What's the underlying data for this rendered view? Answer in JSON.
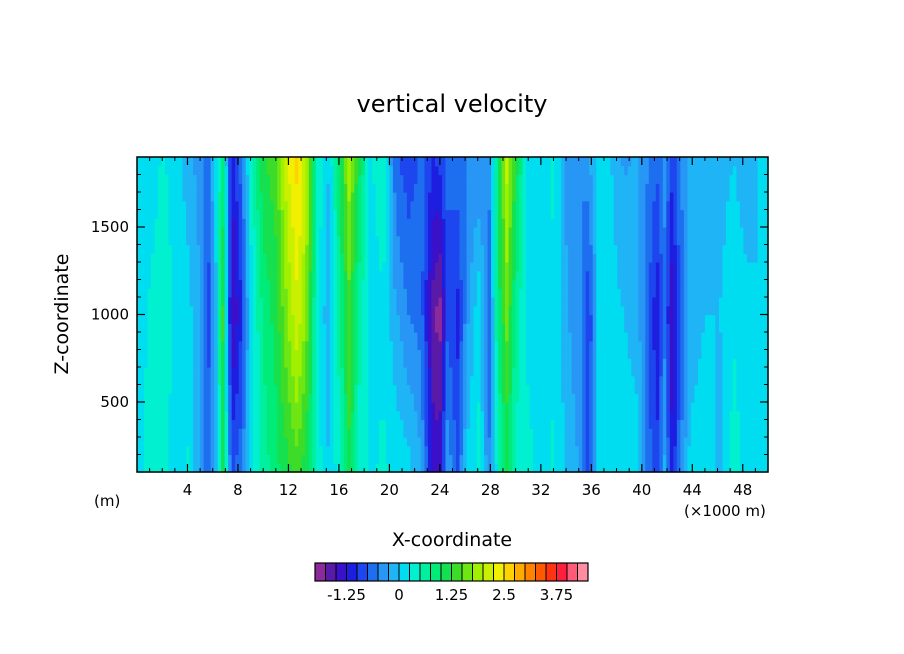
{
  "chart_data": {
    "type": "heatmap",
    "title": "vertical velocity",
    "xlabel": "X-coordinate",
    "ylabel": "Z-coordinate",
    "x_unit_label": "(m)",
    "x_scale_label": "(×1000 m)",
    "xlim": [
      0,
      50
    ],
    "ylim": [
      100,
      1900
    ],
    "x_ticks": [
      "4",
      "8",
      "12",
      "16",
      "20",
      "24",
      "28",
      "32",
      "36",
      "40",
      "44",
      "48"
    ],
    "y_ticks": [
      "500",
      "1000",
      "1500"
    ],
    "colorbar": {
      "levels": [
        -1.75,
        -1.5,
        -1.25,
        -1.0,
        -0.75,
        -0.5,
        -0.25,
        0,
        0.25,
        0.5,
        0.75,
        1.0,
        1.25,
        1.5,
        1.75,
        2.0,
        2.25,
        2.5,
        2.75,
        3.0,
        3.25,
        3.5,
        3.75,
        4.0
      ],
      "tick_labels": [
        "-1.25",
        "0",
        "1.25",
        "2.5",
        "3.75"
      ],
      "colors": [
        "#8c2a9c",
        "#5a1aa8",
        "#3a10c8",
        "#1e1ee0",
        "#1e46ee",
        "#1e6ef0",
        "#2896f5",
        "#1eb4f5",
        "#00dcf0",
        "#00f0d0",
        "#00f0a0",
        "#00ec78",
        "#14e050",
        "#3cdc28",
        "#6ee614",
        "#a0f000",
        "#c8f000",
        "#f0f000",
        "#ffd200",
        "#ffaa00",
        "#ff8200",
        "#ff5a00",
        "#ff3214",
        "#ff1e3c",
        "#ff5a78",
        "#ff8ca0"
      ]
    },
    "columns": [
      {
        "x": 0.0,
        "top": 0.0,
        "mid": 0.05,
        "bot": 0.1
      },
      {
        "x": 1.0,
        "top": 0.0,
        "mid": 0.3,
        "bot": 0.4
      },
      {
        "x": 2.0,
        "top": 0.3,
        "mid": 0.5,
        "bot": 0.35
      },
      {
        "x": 3.0,
        "top": 0.1,
        "mid": 0.2,
        "bot": 0.1
      },
      {
        "x": 4.0,
        "top": -0.1,
        "mid": 0.1,
        "bot": 0.3
      },
      {
        "x": 5.0,
        "top": -0.4,
        "mid": -0.2,
        "bot": -0.3
      },
      {
        "x": 5.6,
        "top": -0.6,
        "mid": -1.0,
        "bot": -0.6
      },
      {
        "x": 6.3,
        "top": 0.2,
        "mid": 0.0,
        "bot": -0.2
      },
      {
        "x": 6.8,
        "top": 0.8,
        "mid": 1.3,
        "bot": 1.1
      },
      {
        "x": 7.5,
        "top": -1.2,
        "mid": -1.6,
        "bot": -0.8
      },
      {
        "x": 8.3,
        "top": -0.6,
        "mid": -1.0,
        "bot": -0.6
      },
      {
        "x": 9.0,
        "top": 0.4,
        "mid": 0.1,
        "bot": 0.2
      },
      {
        "x": 10.0,
        "top": 1.2,
        "mid": 0.8,
        "bot": 0.6
      },
      {
        "x": 11.0,
        "top": 1.4,
        "mid": 1.1,
        "bot": 0.9
      },
      {
        "x": 12.0,
        "top": 2.3,
        "mid": 1.8,
        "bot": 1.2
      },
      {
        "x": 12.7,
        "top": 2.6,
        "mid": 2.2,
        "bot": 1.4
      },
      {
        "x": 13.4,
        "top": 2.1,
        "mid": 1.7,
        "bot": 1.1
      },
      {
        "x": 14.3,
        "top": 0.5,
        "mid": 0.3,
        "bot": 0.4
      },
      {
        "x": 15.2,
        "top": 0.0,
        "mid": -0.2,
        "bot": 0.0
      },
      {
        "x": 16.2,
        "top": 1.2,
        "mid": 0.8,
        "bot": 0.5
      },
      {
        "x": 16.8,
        "top": 1.9,
        "mid": 1.4,
        "bot": 1.2
      },
      {
        "x": 17.6,
        "top": 1.1,
        "mid": 0.6,
        "bot": 0.4
      },
      {
        "x": 18.5,
        "top": 0.2,
        "mid": 0.1,
        "bot": 0.2
      },
      {
        "x": 19.5,
        "top": 0.5,
        "mid": 0.2,
        "bot": 0.3
      },
      {
        "x": 20.5,
        "top": -0.7,
        "mid": -0.2,
        "bot": 0.2
      },
      {
        "x": 21.5,
        "top": -0.9,
        "mid": -0.5,
        "bot": 0.1
      },
      {
        "x": 22.5,
        "top": -0.7,
        "mid": -0.6,
        "bot": -0.2
      },
      {
        "x": 23.5,
        "top": -1.0,
        "mid": -1.7,
        "bot": -1.4
      },
      {
        "x": 24.0,
        "top": -0.9,
        "mid": -1.9,
        "bot": -1.3
      },
      {
        "x": 24.6,
        "top": -0.7,
        "mid": -0.8,
        "bot": -0.3
      },
      {
        "x": 25.4,
        "top": -0.6,
        "mid": -1.1,
        "bot": -0.8
      },
      {
        "x": 26.2,
        "top": -0.5,
        "mid": -0.3,
        "bot": 0.1
      },
      {
        "x": 27.1,
        "top": -0.5,
        "mid": 0.2,
        "bot": 0.3
      },
      {
        "x": 27.9,
        "top": -0.5,
        "mid": -0.6,
        "bot": -0.5
      },
      {
        "x": 28.6,
        "top": 0.9,
        "mid": 0.8,
        "bot": 0.4
      },
      {
        "x": 29.3,
        "top": 2.1,
        "mid": 1.6,
        "bot": 1.0
      },
      {
        "x": 30.0,
        "top": 1.2,
        "mid": 0.7,
        "bot": 0.4
      },
      {
        "x": 31.0,
        "top": 0.2,
        "mid": 0.1,
        "bot": 0.4
      },
      {
        "x": 32.0,
        "top": 0.1,
        "mid": 0.2,
        "bot": 0.0
      },
      {
        "x": 33.0,
        "top": 0.3,
        "mid": 0.2,
        "bot": 0.3
      },
      {
        "x": 34.0,
        "top": -0.3,
        "mid": -0.2,
        "bot": 0.0
      },
      {
        "x": 35.2,
        "top": -0.5,
        "mid": -0.5,
        "bot": -0.3
      },
      {
        "x": 35.8,
        "top": -0.3,
        "mid": -1.0,
        "bot": -0.9
      },
      {
        "x": 36.6,
        "top": 0.2,
        "mid": 0.1,
        "bot": 0.1
      },
      {
        "x": 37.6,
        "top": 0.0,
        "mid": 0.1,
        "bot": 0.2
      },
      {
        "x": 38.6,
        "top": -0.3,
        "mid": 0.0,
        "bot": 0.1
      },
      {
        "x": 39.6,
        "top": -0.2,
        "mid": -0.1,
        "bot": 0.1
      },
      {
        "x": 40.5,
        "top": -0.5,
        "mid": -0.7,
        "bot": -0.6
      },
      {
        "x": 41.2,
        "top": -0.7,
        "mid": -1.2,
        "bot": -1.0
      },
      {
        "x": 41.8,
        "top": -0.4,
        "mid": -0.6,
        "bot": -0.2
      },
      {
        "x": 42.4,
        "top": -0.9,
        "mid": -1.5,
        "bot": -1.2
      },
      {
        "x": 43.0,
        "top": -0.5,
        "mid": -0.8,
        "bot": -0.6
      },
      {
        "x": 43.8,
        "top": -0.2,
        "mid": -0.2,
        "bot": 0.1
      },
      {
        "x": 45.0,
        "top": -0.2,
        "mid": 0.0,
        "bot": 0.2
      },
      {
        "x": 46.2,
        "top": -0.1,
        "mid": 0.0,
        "bot": -0.1
      },
      {
        "x": 47.3,
        "top": 0.0,
        "mid": 0.2,
        "bot": 0.4
      },
      {
        "x": 48.3,
        "top": -0.2,
        "mid": 0.1,
        "bot": 0.1
      },
      {
        "x": 49.2,
        "top": 0.0,
        "mid": 0.0,
        "bot": 0.0
      },
      {
        "x": 50.0,
        "top": 0.0,
        "mid": 0.0,
        "bot": 0.0
      }
    ]
  }
}
